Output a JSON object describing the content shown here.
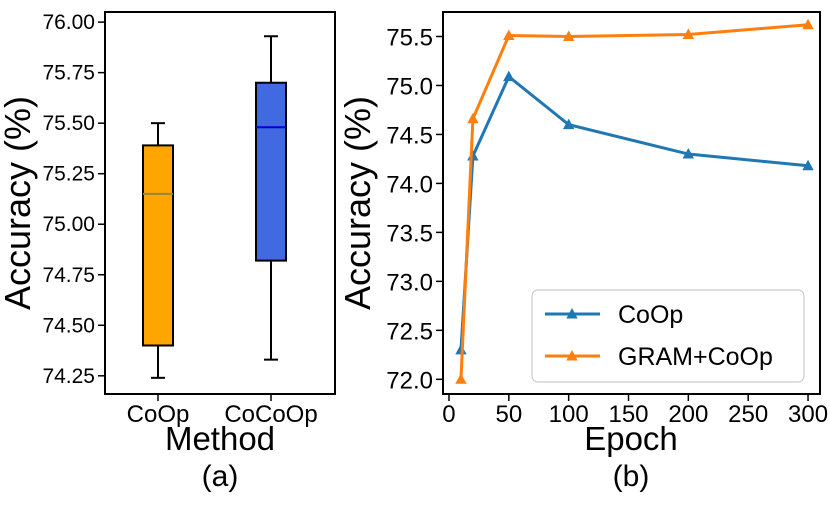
{
  "chart_data": [
    {
      "type": "box",
      "panel_label": "(a)",
      "xlabel": "Method",
      "ylabel": "Accuracy (%)",
      "ylim": [
        74.16,
        76.05
      ],
      "yticks": [
        "74.25",
        "74.50",
        "74.75",
        "75.00",
        "75.25",
        "75.50",
        "75.75",
        "76.00"
      ],
      "categories": [
        "CoOp",
        "CoCoOp"
      ],
      "boxes": [
        {
          "name": "CoOp",
          "whisker_low": 74.24,
          "q1": 74.4,
          "median": 75.15,
          "q3": 75.39,
          "whisker_high": 75.5,
          "color": "#FFA500",
          "median_color": "#8B8B3A"
        },
        {
          "name": "CoCoOp",
          "whisker_low": 74.33,
          "q1": 74.82,
          "median": 75.48,
          "q3": 75.7,
          "whisker_high": 75.93,
          "color": "#4169E1",
          "median_color": "#0000CD"
        }
      ]
    },
    {
      "type": "line",
      "panel_label": "(b)",
      "xlabel": "Epoch",
      "ylabel": "Accuracy (%)",
      "xlim": [
        -5,
        310
      ],
      "ylim": [
        71.85,
        75.75
      ],
      "xticks": [
        "0",
        "50",
        "100",
        "150",
        "200",
        "250",
        "300"
      ],
      "yticks": [
        "72.0",
        "72.5",
        "73.0",
        "73.5",
        "74.0",
        "74.5",
        "75.0",
        "75.5"
      ],
      "x": [
        10,
        20,
        50,
        100,
        200,
        300
      ],
      "series": [
        {
          "name": "CoOp",
          "color": "#1F77B4",
          "values": [
            72.3,
            74.28,
            75.09,
            74.6,
            74.3,
            74.18
          ]
        },
        {
          "name": "GRAM+CoOp",
          "color": "#FF7F0E",
          "values": [
            72.0,
            74.66,
            75.51,
            75.5,
            75.52,
            75.62
          ]
        }
      ],
      "legend_position": "lower-right"
    }
  ]
}
